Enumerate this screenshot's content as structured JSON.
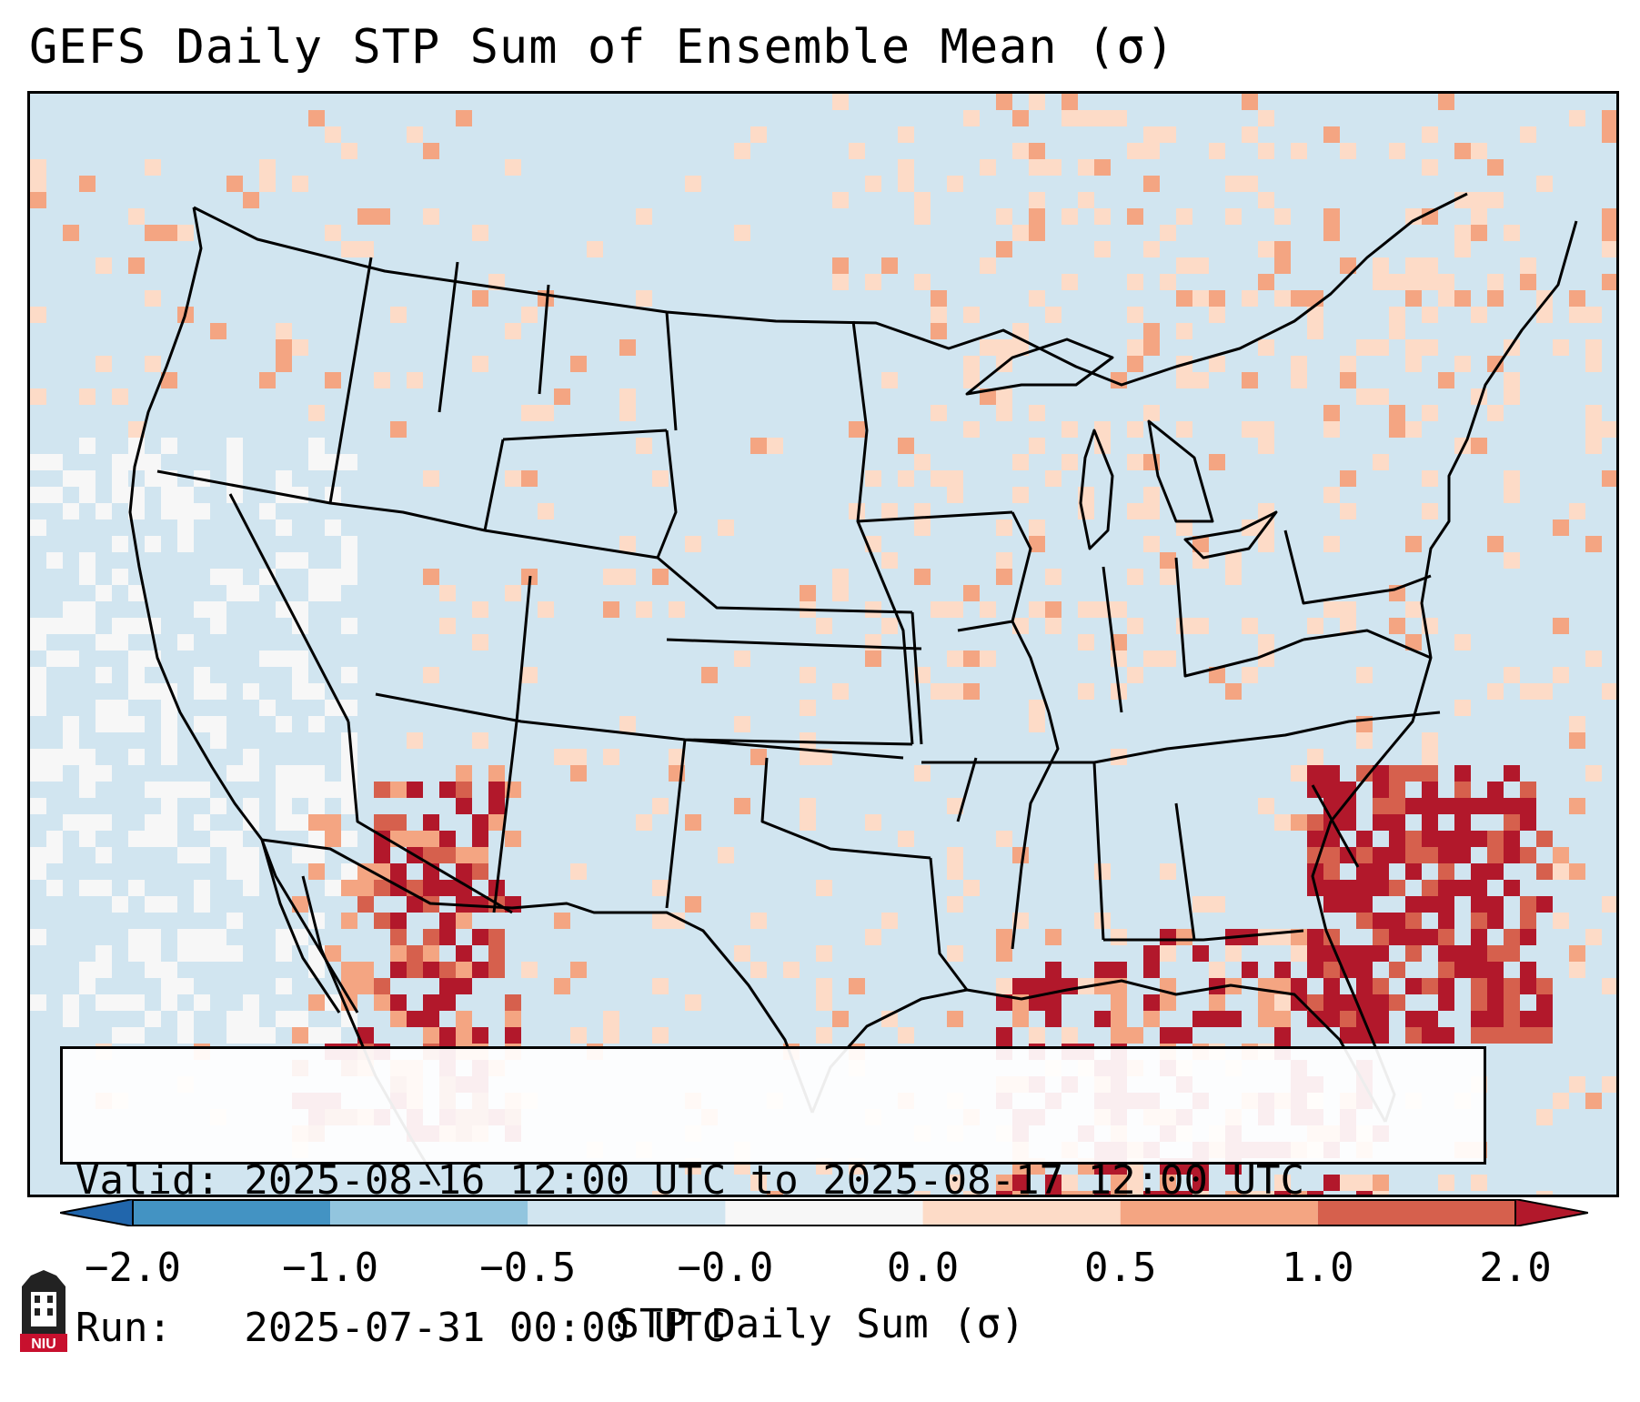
{
  "title": "GEFS Daily STP Sum of Ensemble Mean (σ)",
  "info": {
    "valid_line": "Valid: 2025-08-16 12:00 UTC to 2025-08-17 12:00 UTC",
    "run_line": "Run:   2025-07-31 00:00 UTC"
  },
  "colorbar": {
    "label": "STP Daily Sum (σ)",
    "ticks": [
      "−2.0",
      "−1.0",
      "−0.5",
      "−0.0",
      "0.0",
      "0.5",
      "1.0",
      "2.0"
    ],
    "colors": [
      "#2166ac",
      "#4393c3",
      "#92c5de",
      "#d1e5f0",
      "#f7f7f7",
      "#fddbc7",
      "#f4a582",
      "#d6604d",
      "#b2182b"
    ]
  },
  "logo": {
    "text": "NIU",
    "icon": "niu-logo-icon"
  }
}
